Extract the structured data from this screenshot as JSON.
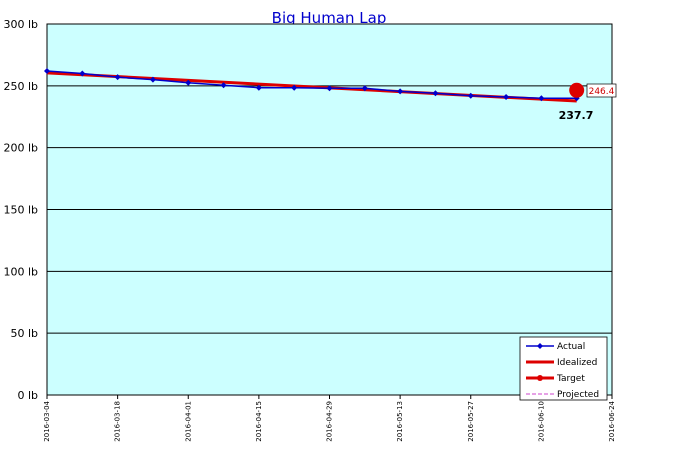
{
  "chart_data": {
    "type": "line",
    "title": "Big Human Lap",
    "xlabel": "",
    "ylabel": "",
    "x_range": [
      "2016-03-04",
      "2016-06-24"
    ],
    "ylim": [
      0,
      300
    ],
    "y_ticks": [
      "0 lb",
      "50 lb",
      "100 lb",
      "150 lb",
      "200 lb",
      "250 lb",
      "300 lb"
    ],
    "y_tick_values": [
      0,
      50,
      100,
      150,
      200,
      250,
      300
    ],
    "x_ticks": [
      "2016-03-04",
      "2016-03-18",
      "2016-04-01",
      "2016-04-15",
      "2016-04-29",
      "2016-05-13",
      "2016-05-27",
      "2016-06-10",
      "2016-06-24"
    ],
    "grid": true,
    "background_color": "#ccffff",
    "legend_position": "bottom-right",
    "series": [
      {
        "name": "Actual",
        "color": "#0000cc",
        "x": [
          "2016-03-04",
          "2016-03-11",
          "2016-03-18",
          "2016-03-25",
          "2016-04-01",
          "2016-04-08",
          "2016-04-15",
          "2016-04-22",
          "2016-04-29",
          "2016-05-06",
          "2016-05-13",
          "2016-05-20",
          "2016-05-27",
          "2016-06-03",
          "2016-06-10",
          "2016-06-17"
        ],
        "values": [
          262,
          260,
          257,
          255,
          252.5,
          250.5,
          248.5,
          248.5,
          248,
          248,
          245.5,
          244,
          242,
          241,
          240,
          240
        ]
      },
      {
        "name": "Idealized",
        "color": "#dd0000",
        "x": [
          "2016-03-04",
          "2016-06-17"
        ],
        "values": [
          260.5,
          237.7
        ]
      },
      {
        "name": "Target",
        "color": "#dd0000",
        "x": [
          "2016-06-17"
        ],
        "values": [
          246.4
        ]
      },
      {
        "name": "Projected",
        "color": "#cc44cc",
        "x": [],
        "values": []
      }
    ],
    "annotations": {
      "end_value": "246.4",
      "target_value": "237.7"
    }
  }
}
